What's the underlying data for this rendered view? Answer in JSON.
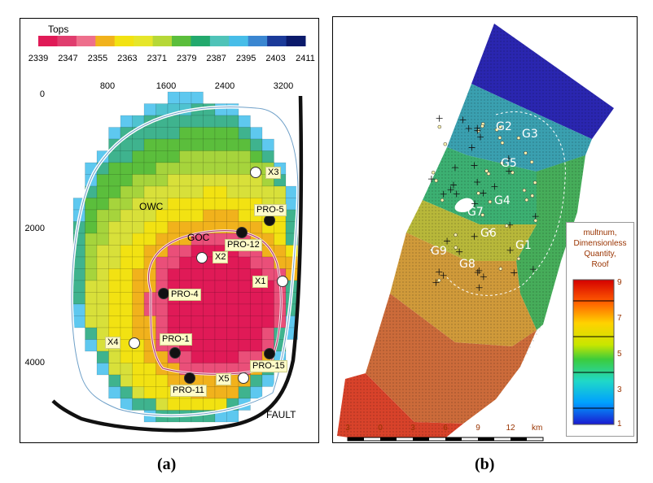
{
  "panel_a": {
    "caption": "(a)",
    "colorbar": {
      "title": "Tops",
      "ticks": [
        "2339",
        "2347",
        "2355",
        "2363",
        "2371",
        "2379",
        "2387",
        "2395",
        "2403",
        "2411"
      ],
      "colors": [
        "#e01a57",
        "#e03d6e",
        "#ee6f8c",
        "#f1b21c",
        "#f2e212",
        "#e6e62a",
        "#b6d837",
        "#5bbe3c",
        "#23a96d",
        "#4fc3b8",
        "#47bde8",
        "#3a86d1",
        "#1b3a99",
        "#0b1a6b"
      ]
    },
    "x_ticks": [
      "800",
      "1600",
      "2400",
      "3200"
    ],
    "y_ticks": [
      "0",
      "2000",
      "4000"
    ],
    "labels": {
      "owc": "OWC",
      "goc": "GOC",
      "fault": "FAULT"
    },
    "wells": [
      {
        "name": "X3",
        "type": "white"
      },
      {
        "name": "PRO-5",
        "type": "black"
      },
      {
        "name": "PRO-12",
        "type": "black"
      },
      {
        "name": "X2",
        "type": "white"
      },
      {
        "name": "X1",
        "type": "white"
      },
      {
        "name": "PRO-4",
        "type": "black"
      },
      {
        "name": "X4",
        "type": "white"
      },
      {
        "name": "PRO-1",
        "type": "black"
      },
      {
        "name": "PRO-15",
        "type": "black"
      },
      {
        "name": "X5",
        "type": "white"
      },
      {
        "name": "PRO-11",
        "type": "black"
      }
    ]
  },
  "panel_b": {
    "caption": "(b)",
    "groups": [
      "G1",
      "G2",
      "G3",
      "G4",
      "G5",
      "G6",
      "G7",
      "G8",
      "G9"
    ],
    "legend": {
      "title_lines": [
        "multnum,",
        "Dimensionless",
        "Quantity,",
        "Roof"
      ],
      "ticks": [
        "9",
        "7",
        "5",
        "3",
        "1"
      ]
    },
    "scale_bar": {
      "ticks": [
        "3",
        "0",
        "3",
        "6",
        "9",
        "12"
      ],
      "unit": "km"
    }
  }
}
